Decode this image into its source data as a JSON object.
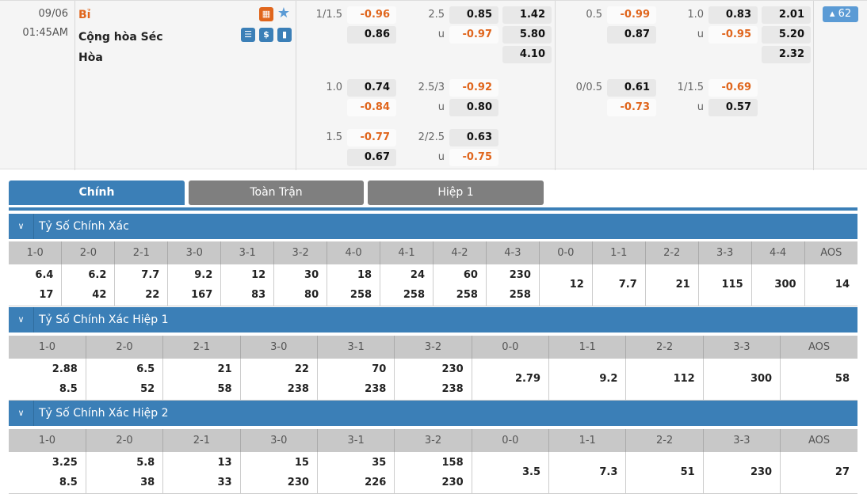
{
  "match": {
    "date": "09/06",
    "time": "01:45AM",
    "home": "Bỉ",
    "away": "Cộng hòa Séc",
    "draw": "Hòa",
    "more_count": "62"
  },
  "icons": [
    "field-icon",
    "star-icon",
    "scoreboard-icon",
    "dollar-icon",
    "stats-icon"
  ],
  "colors": {
    "accent": "#3b7fb7",
    "negative": "#e0661d",
    "home_team": "#e0661d"
  },
  "full_time": [
    {
      "hdp": {
        "line": "1/1.5",
        "home": "-0.96",
        "away": "0.86"
      },
      "ou": {
        "line": "2.5",
        "over": "0.85",
        "under_label": "u",
        "under": "-0.97"
      },
      "x12": [
        "1.42",
        "5.80",
        "4.10"
      ]
    },
    {
      "hdp": {
        "line": "1.0",
        "home": "0.74",
        "away": "-0.84"
      },
      "ou": {
        "line": "2.5/3",
        "over": "-0.92",
        "under_label": "u",
        "under": "0.80"
      }
    },
    {
      "hdp": {
        "line": "1.5",
        "home": "-0.77",
        "away": "0.67"
      },
      "ou": {
        "line": "2/2.5",
        "over": "0.63",
        "under_label": "u",
        "under": "-0.75"
      }
    }
  ],
  "half_time": [
    {
      "hdp": {
        "line": "0.5",
        "home": "-0.99",
        "away": "0.87"
      },
      "ou": {
        "line": "1.0",
        "over": "0.83",
        "under_label": "u",
        "under": "-0.95"
      },
      "x12": [
        "2.01",
        "5.20",
        "2.32"
      ]
    },
    {
      "hdp": {
        "line": "0/0.5",
        "home": "0.61",
        "away": "-0.73"
      },
      "ou": {
        "line": "1/1.5",
        "over": "-0.69",
        "under_label": "u",
        "under": "0.57"
      }
    }
  ],
  "tabs": [
    {
      "label": "Chính",
      "active": true
    },
    {
      "label": "Toàn Trận"
    },
    {
      "label": "Hiệp 1"
    }
  ],
  "sections": [
    {
      "title": "Tỷ Số Chính Xác",
      "scores": [
        "1-0",
        "2-0",
        "2-1",
        "3-0",
        "3-1",
        "3-2",
        "4-0",
        "4-1",
        "4-2",
        "4-3",
        "0-0",
        "1-1",
        "2-2",
        "3-3",
        "4-4",
        "AOS"
      ],
      "odds": [
        [
          "6.4",
          "17"
        ],
        [
          "6.2",
          "42"
        ],
        [
          "7.7",
          "22"
        ],
        [
          "9.2",
          "167"
        ],
        [
          "12",
          "83"
        ],
        [
          "30",
          "80"
        ],
        [
          "18",
          "258"
        ],
        [
          "24",
          "258"
        ],
        [
          "60",
          "258"
        ],
        [
          "230",
          "258"
        ],
        [
          "12"
        ],
        [
          "7.7"
        ],
        [
          "21"
        ],
        [
          "115"
        ],
        [
          "300"
        ],
        [
          "14"
        ]
      ]
    },
    {
      "title": "Tỷ Số Chính Xác Hiệp 1",
      "scores": [
        "1-0",
        "2-0",
        "2-1",
        "3-0",
        "3-1",
        "3-2",
        "0-0",
        "1-1",
        "2-2",
        "3-3",
        "AOS"
      ],
      "odds": [
        [
          "2.88",
          "8.5"
        ],
        [
          "6.5",
          "52"
        ],
        [
          "21",
          "58"
        ],
        [
          "22",
          "238"
        ],
        [
          "70",
          "238"
        ],
        [
          "230",
          "238"
        ],
        [
          "2.79"
        ],
        [
          "9.2"
        ],
        [
          "112"
        ],
        [
          "300"
        ],
        [
          "58"
        ]
      ]
    },
    {
      "title": "Tỷ Số Chính Xác Hiệp 2",
      "scores": [
        "1-0",
        "2-0",
        "2-1",
        "3-0",
        "3-1",
        "3-2",
        "0-0",
        "1-1",
        "2-2",
        "3-3",
        "AOS"
      ],
      "odds": [
        [
          "3.25",
          "8.5"
        ],
        [
          "5.8",
          "38"
        ],
        [
          "13",
          "33"
        ],
        [
          "15",
          "230"
        ],
        [
          "35",
          "226"
        ],
        [
          "158",
          "230"
        ],
        [
          "3.5"
        ],
        [
          "7.3"
        ],
        [
          "51"
        ],
        [
          "230"
        ],
        [
          "27"
        ]
      ]
    }
  ]
}
